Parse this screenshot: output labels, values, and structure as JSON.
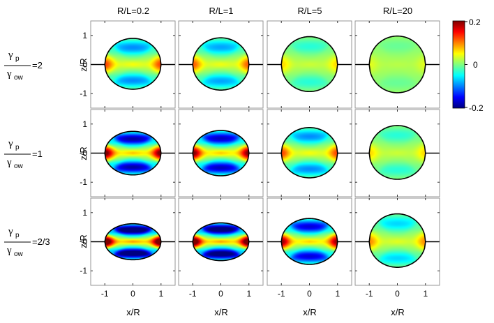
{
  "chart_data": {
    "type": "heatmap",
    "column_titles": [
      "R/L=0.2",
      "R/L=1",
      "R/L=5",
      "R/L=20"
    ],
    "row_labels": [
      {
        "num": "γ",
        "num_sub": "p",
        "den": "γ",
        "den_sub": "ow",
        "value": "=2"
      },
      {
        "num": "γ",
        "num_sub": "p",
        "den": "γ",
        "den_sub": "ow",
        "value": "=1"
      },
      {
        "num": "γ",
        "num_sub": "p",
        "den": "γ",
        "den_sub": "ow",
        "value": "=2/3"
      }
    ],
    "xlabel": "x/R",
    "ylabel": "z/R",
    "xlim": [
      -1.5,
      1.5
    ],
    "ylim": [
      -1.5,
      1.5
    ],
    "xticks": [
      -1,
      0,
      1
    ],
    "yticks": [
      -1,
      0,
      1
    ],
    "xtick_labels": [
      "-1",
      "0",
      "1"
    ],
    "ytick_labels": [
      "-1",
      "0",
      "1"
    ],
    "colorbar": {
      "min": -0.2,
      "max": 0.2,
      "ticks": [
        0.2,
        0,
        -0.2
      ],
      "tick_labels": [
        "0.2",
        "0",
        "-0.2"
      ],
      "colormap": "jet"
    },
    "panels": [
      [
        {
          "top": 0.9,
          "bottom": 0.85,
          "strength": 0.55
        },
        {
          "top": 0.92,
          "bottom": 0.88,
          "strength": 0.5
        },
        {
          "top": 0.96,
          "bottom": 0.93,
          "strength": 0.25
        },
        {
          "top": 0.98,
          "bottom": 0.97,
          "strength": 0.12
        }
      ],
      [
        {
          "top": 0.75,
          "bottom": 0.75,
          "strength": 1.0
        },
        {
          "top": 0.78,
          "bottom": 0.78,
          "strength": 0.95
        },
        {
          "top": 0.88,
          "bottom": 0.85,
          "strength": 0.55
        },
        {
          "top": 0.95,
          "bottom": 0.9,
          "strength": 0.25
        }
      ],
      [
        {
          "top": 0.62,
          "bottom": 0.62,
          "strength": 1.25
        },
        {
          "top": 0.65,
          "bottom": 0.65,
          "strength": 1.2
        },
        {
          "top": 0.8,
          "bottom": 0.78,
          "strength": 0.9
        },
        {
          "top": 0.96,
          "bottom": 0.88,
          "strength": 0.4
        }
      ]
    ]
  }
}
